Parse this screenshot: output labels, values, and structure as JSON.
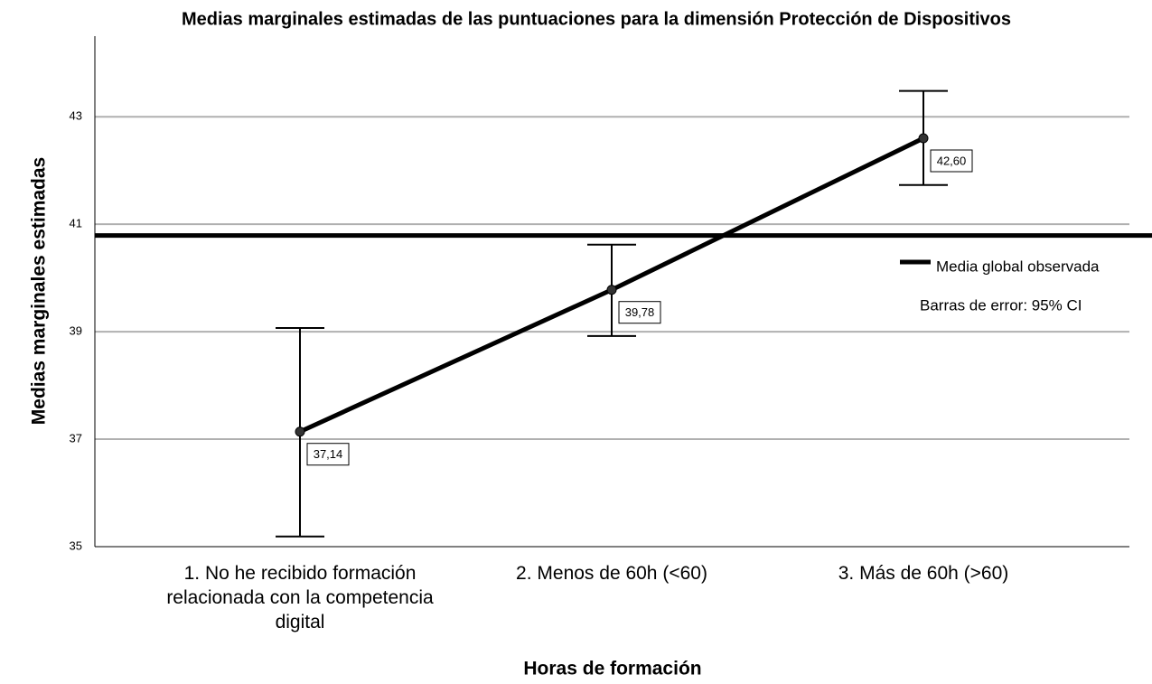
{
  "chart_data": {
    "type": "line",
    "title": "Medias marginales estimadas de las puntuaciones para la dimensión Protección de Dispositivos",
    "x_label": "Horas de formación",
    "y_label": "Medias marginales estimadas",
    "categories": [
      "1. No he recibido formación relacionada con la competencia digital",
      "2. Menos de 60h (<60)",
      "3. Más de 60h (>60)"
    ],
    "series": [
      {
        "color": "#000000",
        "values": [
          37.14,
          39.78,
          42.6
        ],
        "value_labels": [
          "37,14",
          "39,78",
          "42,60"
        ],
        "ci_lower": [
          35.19,
          38.92,
          41.73
        ],
        "ci_upper": [
          39.07,
          40.62,
          43.48
        ]
      }
    ],
    "reference_line": {
      "name": "Media global observada",
      "value": 40.79,
      "color": "#000000"
    },
    "note": "Barras de error: 95% CI",
    "ylim": [
      35,
      44.5
    ],
    "yticks": [
      35,
      37,
      39,
      41,
      43
    ],
    "grid": true
  }
}
